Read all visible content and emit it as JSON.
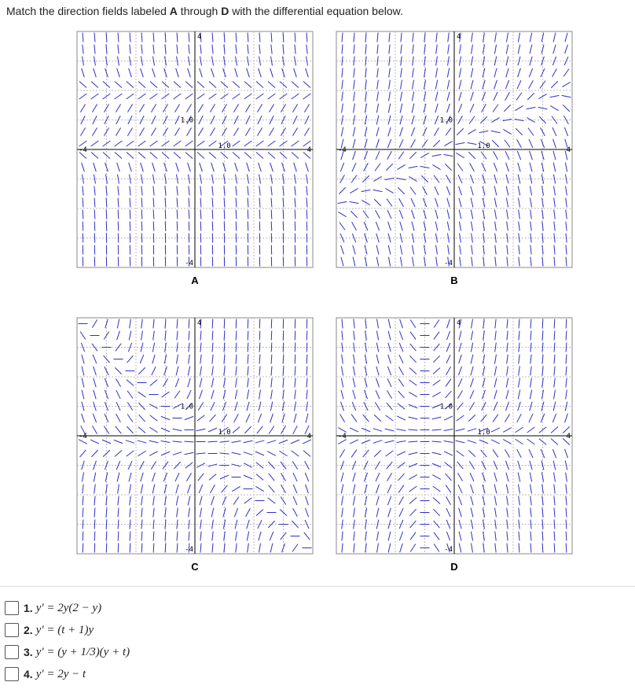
{
  "header": {
    "instruction_pre": "Match the direction fields labeled ",
    "instruction_a": "A",
    "instruction_mid": " through ",
    "instruction_d": "D",
    "instruction_post": " with the differential equation below."
  },
  "panels": [
    {
      "label": "A",
      "axis": {
        "top": "4",
        "bottom": "-4",
        "left": "-4",
        "right": "4",
        "y1": "1.0",
        "x1": "1.0"
      }
    },
    {
      "label": "B",
      "axis": {
        "top": "4",
        "bottom": "-4",
        "left": "-4",
        "right": "4",
        "y1": "1.0",
        "x1": "1.0"
      }
    },
    {
      "label": "C",
      "axis": {
        "top": "4",
        "bottom": "-4",
        "left": "-4",
        "right": "4",
        "y1": "1.0",
        "x1": "1.0"
      }
    },
    {
      "label": "D",
      "axis": {
        "top": "4",
        "bottom": "-4",
        "left": "-4",
        "right": "4",
        "y1": "1.0",
        "x1": "1.0"
      }
    }
  ],
  "equations": [
    {
      "number": "1.",
      "text": "y′ = 2y(2 − y)"
    },
    {
      "number": "2.",
      "text": "y′ = (t + 1)y"
    },
    {
      "number": "3.",
      "text": "y′ = (y + 1/3)(y + t)"
    },
    {
      "number": "4.",
      "text": "y′ = 2y − t"
    }
  ]
}
